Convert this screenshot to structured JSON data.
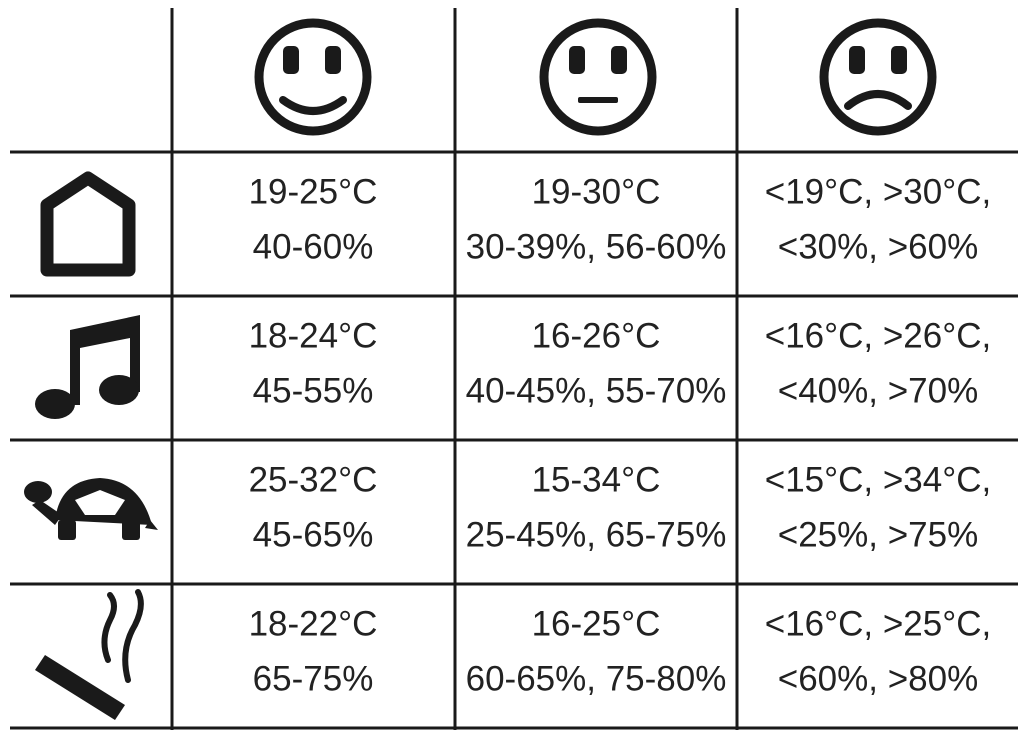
{
  "table": {
    "rows": [
      {
        "cells": [
          [
            "19-25°C",
            "40-60%"
          ],
          [
            "19-30°C",
            "30-39%, 56-60%"
          ],
          [
            "<19°C, >30°C,",
            "<30%, >60%"
          ]
        ]
      },
      {
        "cells": [
          [
            "18-24°C",
            "45-55%"
          ],
          [
            "16-26°C",
            "40-45%, 55-70%"
          ],
          [
            "<16°C, >26°C,",
            "<40%, >70%"
          ]
        ]
      },
      {
        "cells": [
          [
            "25-32°C",
            "45-65%"
          ],
          [
            "15-34°C",
            "25-45%, 65-75%"
          ],
          [
            "<15°C, >34°C,",
            "<25%, >75%"
          ]
        ]
      },
      {
        "cells": [
          [
            "18-22°C",
            "65-75%"
          ],
          [
            "16-25°C",
            "60-65%, 75-80%"
          ],
          [
            "<16°C, >25°C,",
            "<60%, >80%"
          ]
        ]
      }
    ]
  }
}
